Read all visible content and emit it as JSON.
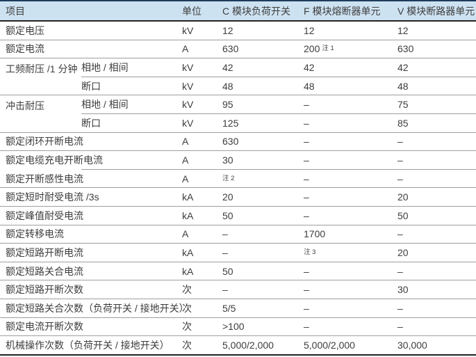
{
  "colors": {
    "header_bg": "#cde2f1",
    "top_rule": "#1e3d5c",
    "heavy_rule": "#232323",
    "row_divider": "#9e9e9e",
    "text": "#3d3d3d"
  },
  "table": {
    "header": {
      "item": "项目",
      "unit": "单位",
      "c": "C 模块负荷开关",
      "f": "F 模块熔断器单元",
      "v": "V 模块断路器单元"
    },
    "rows": {
      "r1": {
        "item": "额定电压",
        "unit": "kV",
        "c": "12",
        "f": "12",
        "v": "12"
      },
      "r2": {
        "item": "额定电流",
        "unit": "A",
        "c": "630",
        "f": "200",
        "f_note": "注 1",
        "v": "630"
      },
      "r3": {
        "group": "工频耐压 /1 分钟",
        "sub": "相地 / 相间",
        "unit": "kV",
        "c": "42",
        "f": "42",
        "v": "42"
      },
      "r4": {
        "sub": "断口",
        "unit": "kV",
        "c": "48",
        "f": "48",
        "v": "48"
      },
      "r5": {
        "group": "冲击耐压",
        "sub": "相地 / 相间",
        "unit": "kV",
        "c": "95",
        "f": "–",
        "v": "75"
      },
      "r6": {
        "sub": "断口",
        "unit": "kV",
        "c": "125",
        "f": "–",
        "v": "85"
      },
      "r7": {
        "item": "额定闭环开断电流",
        "unit": "A",
        "c": "630",
        "f": "–",
        "v": "–"
      },
      "r8": {
        "item": "额定电缆充电开断电流",
        "unit": "A",
        "c": "30",
        "f": "–",
        "v": "–"
      },
      "r9": {
        "item": "额定开断感性电流",
        "unit": "A",
        "c_note": "注 2",
        "f": "–",
        "v": "–"
      },
      "r10": {
        "item": "额定短时耐受电流 /3s",
        "unit": "kA",
        "c": "20",
        "f": "–",
        "v": "20"
      },
      "r11": {
        "item": "额定峰值耐受电流",
        "unit": "kA",
        "c": "50",
        "f": "–",
        "v": "50"
      },
      "r12": {
        "item": "额定转移电流",
        "unit": "A",
        "c": "–",
        "f": "1700",
        "v": "–"
      },
      "r13": {
        "item": "额定短路开断电流",
        "unit": "kA",
        "c": "–",
        "f_note": "注 3",
        "v": "20"
      },
      "r14": {
        "item": "额定短路关合电流",
        "unit": "kA",
        "c": "50",
        "f": "–",
        "v": "–"
      },
      "r15": {
        "item": "额定短路开断次数",
        "unit": "次",
        "c": "–",
        "f": "–",
        "v": "30"
      },
      "r16": {
        "item": "额定短路关合次数（负荷开关 / 接地开关）",
        "unit": "次",
        "c": "5/5",
        "f": "–",
        "v": "–"
      },
      "r17": {
        "item": "额定电流开断次数",
        "unit": "次",
        "c": ">100",
        "f": "–",
        "v": "–"
      },
      "r18": {
        "item": "机械操作次数（负荷开关 / 接地开关）",
        "unit": "次",
        "c": "5,000/2,000",
        "f": "5,000/2,000",
        "v": "30,000"
      }
    }
  }
}
